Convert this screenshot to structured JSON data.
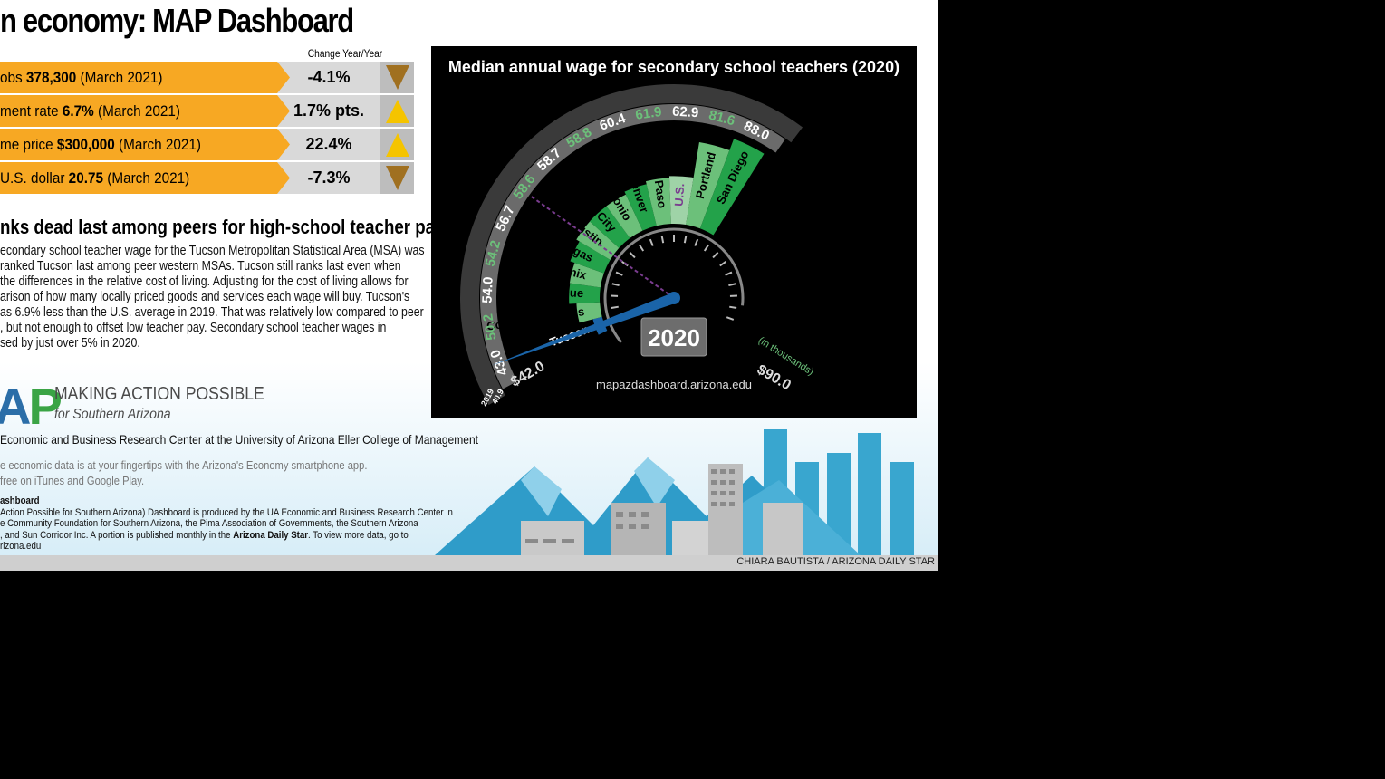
{
  "header": {
    "title": "n economy: MAP Dashboard"
  },
  "indicators": {
    "column_header": "Change Year/Year",
    "rows": [
      {
        "label_pre": "obs ",
        "label_value": "378,300",
        "label_post": " (March 2021)",
        "change": "-4.1%",
        "direction": "down"
      },
      {
        "label_pre": "ment rate ",
        "label_value": "6.7%",
        "label_post": " (March 2021)",
        "change": "1.7% pts.",
        "direction": "up"
      },
      {
        "label_pre": "me price ",
        "label_value": "$300,000",
        "label_post": " (March 2021)",
        "change": "22.4%",
        "direction": "up"
      },
      {
        "label_pre": "U.S. dollar ",
        "label_value": "20.75",
        "label_post": " (March 2021)",
        "change": "-7.3%",
        "direction": "down"
      }
    ],
    "colors": {
      "bar": "#f7a823",
      "up_arrow": "#f5c400",
      "down_arrow": "#a07020"
    }
  },
  "article": {
    "heading": "nks dead last among peers for high-school teacher pay",
    "lines": [
      "econdary school teacher wage for the Tucson Metropolitan Statistical Area (MSA) was",
      "ranked Tucson last among peer western MSAs. Tucson still ranks last even when",
      "the differences in the relative cost of living. Adjusting for the cost of living allows for",
      "arison of how many locally priced goods and services each wage will buy. Tucson's",
      "as 6.9% less than the U.S. average in 2019. That was relatively low compared to peer",
      ", but not enough to offset low teacher pay. Secondary school teacher wages in",
      "sed by just over 5% in 2020."
    ]
  },
  "brand": {
    "logo_a": "A",
    "logo_p": "P",
    "name": "MAKING ACTION POSSIBLE",
    "tagline": "for Southern Arizona",
    "credit": "Economic and Business Research Center at the University of Arizona Eller College of Management",
    "app_line1": "e economic data is at your fingertips with the Arizona's Economy smartphone app.",
    "app_line2": "free on iTunes and Google Play.",
    "about_heading": "ashboard",
    "about_line1": "Action Possible for Southern Arizona) Dashboard is produced by the UA Economic and Business Research Center in",
    "about_line2": "e Community Foundation for Southern Arizona, the Pima Association of Governments, the Southern Arizona",
    "about_line3_pre": ", and Sun Corridor Inc. A portion is published monthly in the ",
    "about_line3_bold": "Arizona Daily Star",
    "about_line3_post": ". To view more data, go to",
    "about_line4": "rizona.edu"
  },
  "footer": {
    "credit": "CHIARA BAUTISTA / ARIZONA DAILY STAR"
  },
  "chart_data": {
    "type": "radial-gauge",
    "title": "Median annual wage for secondary school teachers (2020)",
    "unit_note": "(in thousands)",
    "scale_min_label": "$42.0",
    "scale_max_label": "$90.0",
    "range": [
      42.0,
      90.0
    ],
    "year_display": "2020",
    "url": "mapazdashboard.arizona.edu",
    "categories": [
      "Tucson",
      "Colorado Springs",
      "Albuquerque",
      "Phoenix",
      "Las Vegas",
      "Austin",
      "Salt Lake City",
      "San Antonio",
      "Denver",
      "El Paso",
      "U.S.",
      "Portland",
      "San Diego"
    ],
    "series": [
      {
        "name": "2020",
        "values": [
          43.0,
          50.2,
          54.0,
          54.2,
          56.7,
          58.6,
          58.7,
          58.8,
          60.4,
          61.9,
          62.9,
          81.6,
          88.0
        ]
      }
    ],
    "value_labels": [
      "43.0",
      "50.2",
      "54.0",
      "54.2",
      "56.7",
      "58.6",
      "58.7",
      "58.8",
      "60.4",
      "61.9",
      "62.9",
      "81.6",
      "88.0"
    ],
    "label_colors": [
      "white",
      "green",
      "white",
      "green",
      "white",
      "green",
      "white",
      "green",
      "white",
      "green",
      "white",
      "green",
      "white"
    ],
    "prior_year": {
      "label": "2019",
      "value_label": "40.9"
    },
    "colors": {
      "bg": "#000000",
      "segment": "#23a24a",
      "segment_light": "#6cc07a",
      "highlight": "#1a64a8",
      "us": "#7a3c8f",
      "green_text": "#6cc07a"
    }
  }
}
